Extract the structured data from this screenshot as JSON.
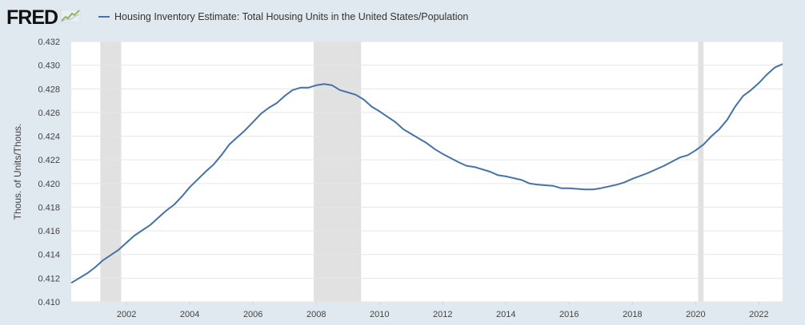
{
  "app": {
    "logo_text": "FRED",
    "logo_icon": "trend-line-icon"
  },
  "legend": {
    "label": "Housing Inventory Estimate: Total Housing Units in the United States/Population",
    "color": "#4572a7"
  },
  "chart_data": {
    "type": "line",
    "title": "",
    "xlabel": "",
    "ylabel": "Thous. of Units/Thous.",
    "xlim": [
      2000.25,
      2022.75
    ],
    "ylim": [
      0.41,
      0.432
    ],
    "x_ticks": [
      2002,
      2004,
      2006,
      2008,
      2010,
      2012,
      2014,
      2016,
      2018,
      2020,
      2022
    ],
    "y_ticks": [
      0.41,
      0.412,
      0.414,
      0.416,
      0.418,
      0.42,
      0.422,
      0.424,
      0.426,
      0.428,
      0.43,
      0.432
    ],
    "grid": "horizontal",
    "recession_bands": [
      [
        2001.17,
        2001.83
      ],
      [
        2007.92,
        2009.42
      ],
      [
        2020.08,
        2020.25
      ]
    ],
    "recession_color": "#e1e1e1",
    "series": [
      {
        "name": "Housing Inventory Estimate: Total Housing Units in the United States/Population",
        "color": "#4572a7",
        "x": [
          2000.25,
          2000.75,
          2001.0,
          2001.25,
          2001.75,
          2002.0,
          2002.25,
          2002.75,
          2003.0,
          2003.25,
          2003.5,
          2003.75,
          2004.0,
          2004.5,
          2004.75,
          2005.0,
          2005.25,
          2005.5,
          2005.75,
          2006.0,
          2006.25,
          2006.5,
          2006.75,
          2007.0,
          2007.25,
          2007.5,
          2007.75,
          2008.0,
          2008.25,
          2008.5,
          2008.75,
          2009.0,
          2009.25,
          2009.5,
          2009.75,
          2010.0,
          2010.5,
          2010.75,
          2011.0,
          2011.5,
          2011.75,
          2012.0,
          2012.5,
          2012.75,
          2013.0,
          2013.5,
          2013.75,
          2014.0,
          2014.5,
          2014.75,
          2015.0,
          2015.5,
          2015.75,
          2016.0,
          2016.5,
          2016.75,
          2017.0,
          2017.5,
          2017.75,
          2018.0,
          2018.5,
          2018.75,
          2019.0,
          2019.5,
          2019.75,
          2020.0,
          2020.25,
          2020.5,
          2020.75,
          2021.0,
          2021.25,
          2021.5,
          2021.75,
          2022.0,
          2022.25,
          2022.5,
          2022.75
        ],
        "values": [
          0.4116,
          0.4124,
          0.4129,
          0.4135,
          0.4144,
          0.415,
          0.4156,
          0.4165,
          0.4171,
          0.4177,
          0.4182,
          0.4189,
          0.4197,
          0.421,
          0.4216,
          0.4224,
          0.4233,
          0.4239,
          0.4245,
          0.4252,
          0.4259,
          0.4264,
          0.4268,
          0.4274,
          0.4279,
          0.4281,
          0.4281,
          0.4283,
          0.4284,
          0.4283,
          0.4279,
          0.4277,
          0.4275,
          0.4271,
          0.4265,
          0.4261,
          0.4252,
          0.4246,
          0.4242,
          0.4234,
          0.4229,
          0.4225,
          0.4218,
          0.4215,
          0.4214,
          0.421,
          0.4207,
          0.4206,
          0.4203,
          0.42,
          0.4199,
          0.4198,
          0.4196,
          0.4196,
          0.4195,
          0.4195,
          0.4196,
          0.4199,
          0.4201,
          0.4204,
          0.4209,
          0.4212,
          0.4215,
          0.4222,
          0.4224,
          0.4228,
          0.4233,
          0.424,
          0.4246,
          0.4254,
          0.4265,
          0.4274,
          0.4279,
          0.4285,
          0.4292,
          0.4298,
          0.4301
        ]
      }
    ]
  }
}
